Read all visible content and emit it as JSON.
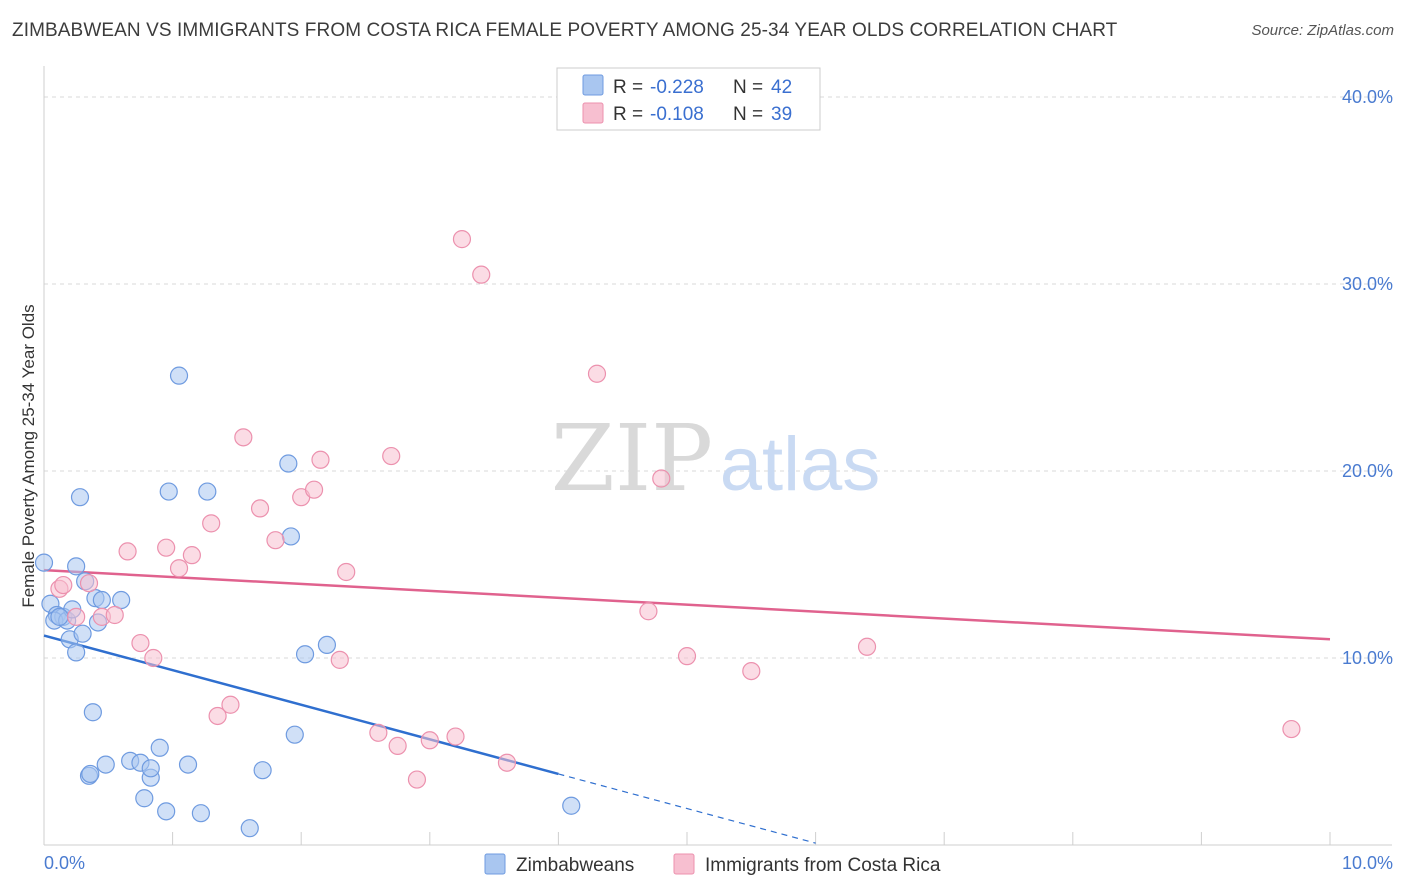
{
  "title": "ZIMBABWEAN VS IMMIGRANTS FROM COSTA RICA FEMALE POVERTY AMONG 25-34 YEAR OLDS CORRELATION CHART",
  "source": "Source: ZipAtlas.com",
  "watermark": {
    "zip": "ZIP",
    "atlas": "atlas"
  },
  "colors": {
    "blue_fill": "#a9c6f0",
    "blue_stroke": "#6f9be0",
    "blue_line": "#2f6fcf",
    "pink_fill": "#f7bfd0",
    "pink_stroke": "#ec91ae",
    "pink_line": "#e0628e",
    "grid": "#d8d8d8",
    "tick_text": "#4a7bd0"
  },
  "legend": {
    "rows": [
      {
        "r_label": "R = ",
        "r_value": "-0.228",
        "n_label": "N = ",
        "n_value": "42"
      },
      {
        "r_label": "R = ",
        "r_value": "-0.108",
        "n_label": "N = ",
        "n_value": "39"
      }
    ]
  },
  "chart_data": {
    "type": "scatter",
    "title": "ZIMBABWEAN VS IMMIGRANTS FROM COSTA RICA FEMALE POVERTY AMONG 25-34 YEAR OLDS CORRELATION CHART",
    "xlabel": "",
    "ylabel": "Female Poverty Among 25-34 Year Olds",
    "xlim": [
      0,
      10
    ],
    "ylim": [
      0,
      40
    ],
    "x_tick_labels": [
      "0.0%",
      "10.0%"
    ],
    "y_ticks": [
      10,
      20,
      30,
      40
    ],
    "y_tick_labels": [
      "10.0%",
      "20.0%",
      "30.0%",
      "40.0%"
    ],
    "grid": true,
    "legend_position": "top-center",
    "series": [
      {
        "name": "Zimbabweans",
        "r": -0.228,
        "n": 42,
        "trend": {
          "x0": 0.0,
          "y0": 11.2,
          "x1": 4.0,
          "y1": 3.8,
          "dash_to_x": 6.0,
          "dash_to_y": 0.1
        },
        "points": [
          [
            0.0,
            15.1
          ],
          [
            0.05,
            12.9
          ],
          [
            0.1,
            12.3
          ],
          [
            0.15,
            12.2
          ],
          [
            0.08,
            12.0
          ],
          [
            0.18,
            12.0
          ],
          [
            0.2,
            11.0
          ],
          [
            0.22,
            12.6
          ],
          [
            0.25,
            10.3
          ],
          [
            0.25,
            14.9
          ],
          [
            0.28,
            18.6
          ],
          [
            0.3,
            11.3
          ],
          [
            0.32,
            14.1
          ],
          [
            0.38,
            7.1
          ],
          [
            0.4,
            13.2
          ],
          [
            0.42,
            11.9
          ],
          [
            0.45,
            13.1
          ],
          [
            0.35,
            3.7
          ],
          [
            0.36,
            3.8
          ],
          [
            0.48,
            4.3
          ],
          [
            0.6,
            13.1
          ],
          [
            0.67,
            4.5
          ],
          [
            0.75,
            4.4
          ],
          [
            0.78,
            2.5
          ],
          [
            0.83,
            3.6
          ],
          [
            0.83,
            4.1
          ],
          [
            0.9,
            5.2
          ],
          [
            0.95,
            1.8
          ],
          [
            0.97,
            18.9
          ],
          [
            1.05,
            25.1
          ],
          [
            1.12,
            4.3
          ],
          [
            1.22,
            1.7
          ],
          [
            1.27,
            18.9
          ],
          [
            1.6,
            0.9
          ],
          [
            1.7,
            4.0
          ],
          [
            1.9,
            20.4
          ],
          [
            1.92,
            16.5
          ],
          [
            1.95,
            5.9
          ],
          [
            2.03,
            10.2
          ],
          [
            2.2,
            10.7
          ],
          [
            4.1,
            2.1
          ],
          [
            0.12,
            12.2
          ]
        ]
      },
      {
        "name": "Immigrants from Costa Rica",
        "r": -0.108,
        "n": 39,
        "trend": {
          "x0": 0.0,
          "y0": 14.7,
          "x1": 10.0,
          "y1": 11.0
        },
        "points": [
          [
            0.12,
            13.7
          ],
          [
            0.15,
            13.9
          ],
          [
            0.25,
            12.2
          ],
          [
            0.35,
            14.0
          ],
          [
            0.45,
            12.2
          ],
          [
            0.55,
            12.3
          ],
          [
            0.65,
            15.7
          ],
          [
            0.75,
            10.8
          ],
          [
            0.85,
            10.0
          ],
          [
            0.95,
            15.9
          ],
          [
            1.05,
            14.8
          ],
          [
            1.15,
            15.5
          ],
          [
            1.3,
            17.2
          ],
          [
            1.35,
            6.9
          ],
          [
            1.45,
            7.5
          ],
          [
            1.55,
            21.8
          ],
          [
            1.68,
            18.0
          ],
          [
            1.8,
            16.3
          ],
          [
            2.0,
            18.6
          ],
          [
            2.1,
            19.0
          ],
          [
            2.15,
            20.6
          ],
          [
            2.3,
            9.9
          ],
          [
            2.35,
            14.6
          ],
          [
            2.6,
            6.0
          ],
          [
            2.7,
            20.8
          ],
          [
            2.75,
            5.3
          ],
          [
            2.9,
            3.5
          ],
          [
            3.0,
            5.6
          ],
          [
            3.2,
            5.8
          ],
          [
            3.25,
            32.4
          ],
          [
            3.4,
            30.5
          ],
          [
            4.3,
            25.2
          ],
          [
            4.7,
            12.5
          ],
          [
            4.8,
            19.6
          ],
          [
            5.0,
            10.1
          ],
          [
            5.5,
            9.3
          ],
          [
            6.4,
            10.6
          ],
          [
            9.7,
            6.2
          ],
          [
            3.6,
            4.4
          ]
        ]
      }
    ]
  }
}
